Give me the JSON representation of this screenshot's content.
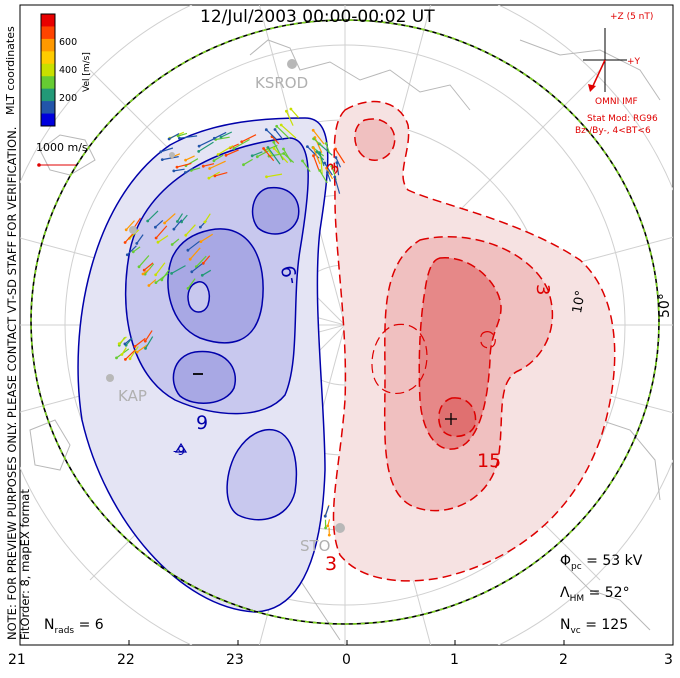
{
  "title": "12/Jul/2003 00:00-00:02 UT",
  "coords_label": "MLT coordinates",
  "preview_note": "NOTE: FOR PREVIEW PURPOSES ONLY. PLEASE CONTACT VT-SD STAFF FOR VERIFICATION.",
  "fit_note": "FitOrder: 8, mapEX format",
  "colorbar": {
    "label": "Vel [m/s]",
    "ticks": [
      "600",
      "400",
      "200"
    ],
    "colors": [
      "#e80000",
      "#ff4400",
      "#ff9900",
      "#ffcc00",
      "#c8e000",
      "#66cc33",
      "#229977",
      "#2255aa",
      "#0000dd"
    ]
  },
  "vector_scale": "1000 m/s",
  "imf": {
    "z_label": "+Z (5 nT)",
    "y_label": "+Y",
    "source": "OMNI IMF",
    "stat_mod": "Stat Mod: RG96",
    "condition": "Bz-/By-, 4<BT<6"
  },
  "stations": [
    "KSROD",
    "KAP",
    "STO"
  ],
  "latitude_labels": [
    "50°",
    "10°"
  ],
  "contour_labels": {
    "neg": [
      "-9",
      "9",
      "-9"
    ],
    "pos": [
      "3",
      "15",
      "3"
    ],
    "min_marker": "–",
    "max_marker": "+"
  },
  "stats": {
    "phi_label": "Φ",
    "phi_sub": "pc",
    "phi_value": "= 53 kV",
    "lambda_label": "Λ",
    "lambda_sub": "HM",
    "lambda_value": "= 52°",
    "nvc_label": "N",
    "nvc_sub": "vc",
    "nvc_value": "= 125",
    "nrads_label": "N",
    "nrads_sub": "rads",
    "nrads_value": "= 6"
  },
  "mlt_ticks": [
    "21",
    "22",
    "23",
    "0",
    "1",
    "2",
    "3"
  ],
  "colors": {
    "neg_fill": "#e4e4f4",
    "neg_mid": "#c8c8ee",
    "neg_deep": "#a8a8e4",
    "neg_line": "#0000aa",
    "pos_fill": "#f6e2e2",
    "pos_mid": "#f0c0c0",
    "pos_deep": "#e68888",
    "pos_line": "#dd0000",
    "hmb": "#7ed321"
  }
}
